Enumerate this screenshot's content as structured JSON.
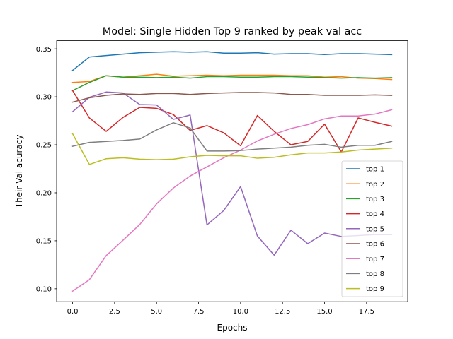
{
  "chart_data": {
    "type": "line",
    "title": "Model: Single Hidden Top 9 ranked by peak val acc",
    "xlabel": "Epochs",
    "ylabel": "Their Val acuracy",
    "xlim": [
      -0.95,
      19.95
    ],
    "ylim": [
      0.0865,
      0.3585
    ],
    "x_ticks": [
      0.0,
      2.5,
      5.0,
      7.5,
      10.0,
      12.5,
      15.0,
      17.5
    ],
    "x_tick_labels": [
      "0.0",
      "2.5",
      "5.0",
      "7.5",
      "10.0",
      "12.5",
      "15.0",
      "17.5"
    ],
    "y_ticks": [
      0.1,
      0.15,
      0.2,
      0.25,
      0.3,
      0.35
    ],
    "y_tick_labels": [
      "0.10",
      "0.15",
      "0.20",
      "0.25",
      "0.30",
      "0.35"
    ],
    "legend_position": "lower-right",
    "grid": false,
    "x": [
      0,
      1,
      2,
      3,
      4,
      5,
      6,
      7,
      8,
      9,
      10,
      11,
      12,
      13,
      14,
      15,
      16,
      17,
      18,
      19
    ],
    "series": [
      {
        "name": "top 1",
        "color": "#1f77b4",
        "values": [
          0.3275,
          0.3415,
          0.343,
          0.3445,
          0.346,
          0.3465,
          0.347,
          0.3465,
          0.347,
          0.3455,
          0.3455,
          0.346,
          0.3445,
          0.345,
          0.345,
          0.344,
          0.345,
          0.345,
          0.3445,
          0.344
        ]
      },
      {
        "name": "top 2",
        "color": "#ff7f0e",
        "values": [
          0.315,
          0.316,
          0.322,
          0.3205,
          0.322,
          0.3235,
          0.3215,
          0.322,
          0.3225,
          0.322,
          0.3225,
          0.3225,
          0.3225,
          0.322,
          0.322,
          0.3205,
          0.321,
          0.3195,
          0.319,
          0.318
        ]
      },
      {
        "name": "top 3",
        "color": "#2ca02c",
        "values": [
          0.3065,
          0.315,
          0.322,
          0.3205,
          0.3205,
          0.32,
          0.3205,
          0.3195,
          0.321,
          0.321,
          0.3205,
          0.3205,
          0.321,
          0.321,
          0.3205,
          0.32,
          0.3195,
          0.32,
          0.3195,
          0.32
        ]
      },
      {
        "name": "top 4",
        "color": "#d62728",
        "values": [
          0.3065,
          0.278,
          0.264,
          0.2785,
          0.289,
          0.288,
          0.2815,
          0.265,
          0.27,
          0.2625,
          0.249,
          0.2805,
          0.264,
          0.25,
          0.2535,
          0.2715,
          0.2425,
          0.278,
          0.2735,
          0.2695
        ]
      },
      {
        "name": "top 5",
        "color": "#9467bd",
        "values": [
          0.2845,
          0.2995,
          0.305,
          0.304,
          0.292,
          0.2915,
          0.2765,
          0.281,
          0.1665,
          0.1815,
          0.2065,
          0.155,
          0.135,
          0.161,
          0.147,
          0.158,
          0.1545,
          0.1555,
          0.1565,
          0.1565
        ]
      },
      {
        "name": "top 6",
        "color": "#8c564b",
        "values": [
          0.2945,
          0.299,
          0.3015,
          0.303,
          0.3025,
          0.3035,
          0.3035,
          0.3025,
          0.3035,
          0.304,
          0.3045,
          0.3045,
          0.304,
          0.3025,
          0.3025,
          0.3015,
          0.3015,
          0.3015,
          0.302,
          0.3015
        ]
      },
      {
        "name": "top 7",
        "color": "#e377c2",
        "values": [
          0.0975,
          0.1095,
          0.1345,
          0.1505,
          0.167,
          0.1885,
          0.205,
          0.2175,
          0.227,
          0.2365,
          0.2445,
          0.254,
          0.261,
          0.267,
          0.271,
          0.277,
          0.28,
          0.28,
          0.282,
          0.2865
        ]
      },
      {
        "name": "top 8",
        "color": "#7f7f7f",
        "values": [
          0.2485,
          0.2525,
          0.2535,
          0.2545,
          0.256,
          0.2655,
          0.273,
          0.2675,
          0.2435,
          0.2435,
          0.244,
          0.2455,
          0.2465,
          0.2475,
          0.2495,
          0.2505,
          0.2475,
          0.2495,
          0.2495,
          0.2535
        ]
      },
      {
        "name": "top 9",
        "color": "#bcbd22",
        "values": [
          0.2615,
          0.2295,
          0.2355,
          0.2365,
          0.235,
          0.2345,
          0.235,
          0.2375,
          0.239,
          0.2385,
          0.2385,
          0.236,
          0.237,
          0.2395,
          0.2415,
          0.2415,
          0.2425,
          0.2445,
          0.2455,
          0.2465
        ]
      }
    ]
  }
}
